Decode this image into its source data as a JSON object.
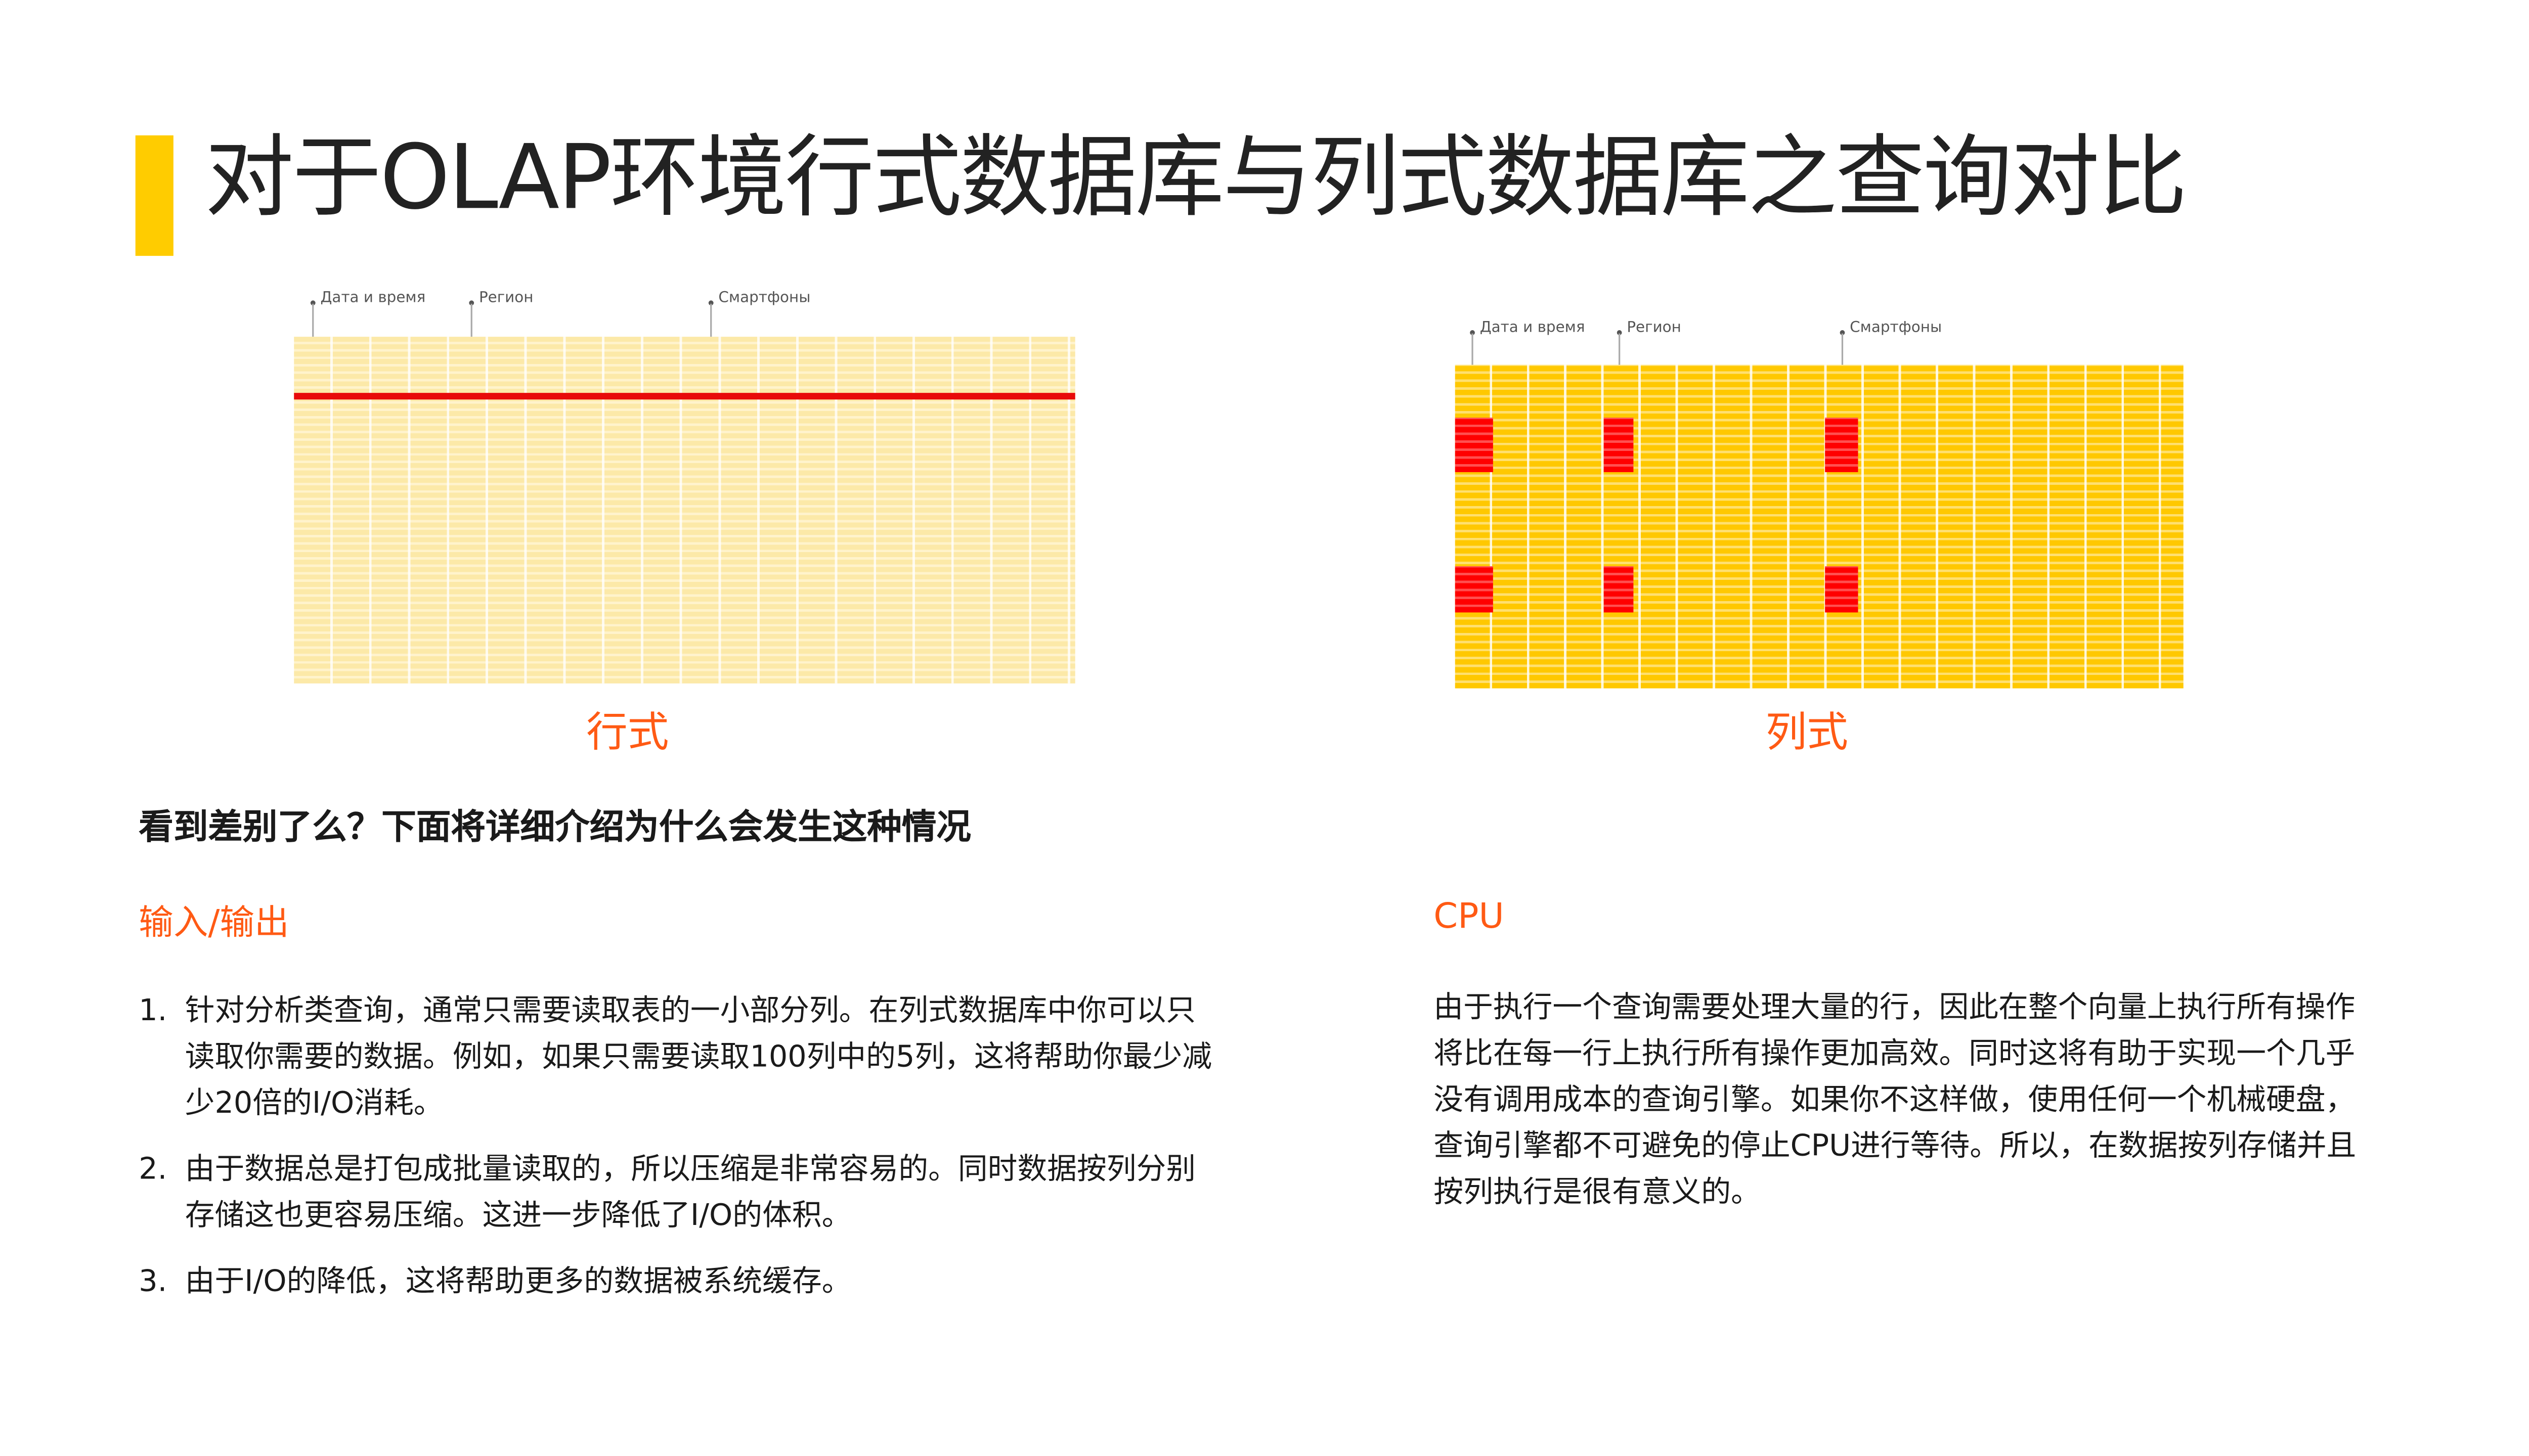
{
  "title": "对于OLAP环境行式数据库与列式数据库之查询对比",
  "colors": {
    "accent": "#FFCC00",
    "highlight": "#FF5A14",
    "selected_data": "#E80A0A"
  },
  "row_diagram": {
    "labels": [
      "Дата и время",
      "Регион",
      "Смартфоны"
    ],
    "caption": "行式"
  },
  "column_diagram": {
    "labels": [
      "Дата и время",
      "Регион",
      "Смартфоны"
    ],
    "caption": "列式"
  },
  "subheading": "看到差别了么？下面将详细介绍为什么会发生这种情况",
  "io_section": {
    "heading": "输入/输出",
    "items": [
      {
        "num": "1.",
        "lines": [
          "针对分析类查询，通常只需要读取表的一小部分列。在列式数据库中你可以只",
          "读取你需要的数据。例如，如果只需要读取100列中的5列，这将帮助你最少减",
          "少20倍的I/O消耗。"
        ]
      },
      {
        "num": "2.",
        "lines": [
          "由于数据总是打包成批量读取的，所以压缩是非常容易的。同时数据按列分别",
          "存储这也更容易压缩。这进一步降低了I/O的体积。"
        ]
      },
      {
        "num": "3.",
        "lines": [
          "由于I/O的降低，这将帮助更多的数据被系统缓存。"
        ]
      }
    ]
  },
  "cpu_section": {
    "heading": "CPU",
    "lines": [
      "由于执行一个查询需要处理大量的行，因此在整个向量上执行所有操作",
      "将比在每一行上执行所有操作更加高效。同时这将有助于实现一个几乎",
      "没有调用成本的查询引擎。如果你不这样做，使用任何一个机械硬盘，",
      "查询引擎都不可避免的停止CPU进行等待。所以，在数据按列存储并且",
      "按列执行是很有意义的。"
    ]
  }
}
